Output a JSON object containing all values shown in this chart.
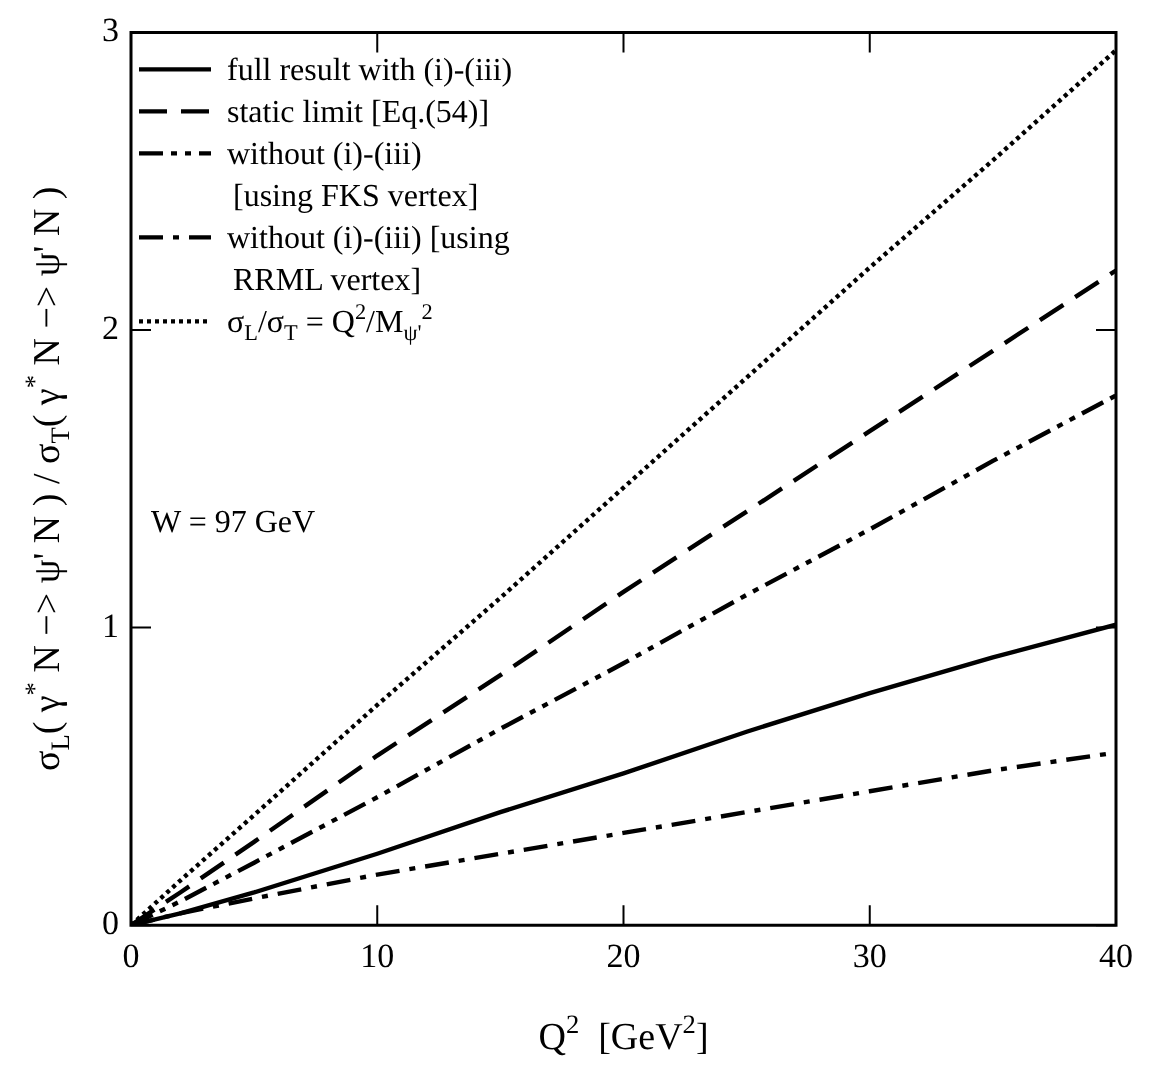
{
  "chart_data": {
    "type": "line",
    "xlabel": "Q$^{2}$  [GeV$^{2}$]",
    "ylabel": "σ$_{L}$( γ$^{*}$ N −> ψ' N ) / σ$_{T}$( γ$^{*}$ N −> ψ' N )",
    "x": [
      0,
      2,
      5,
      10,
      15,
      20,
      25,
      30,
      35,
      40
    ],
    "series": [
      {
        "name": "full result with (i)-(iii)",
        "color": "#000000",
        "line_style": "solid",
        "values": [
          0,
          0.04,
          0.11,
          0.24,
          0.38,
          0.51,
          0.65,
          0.78,
          0.9,
          1.01
        ]
      },
      {
        "name": "static limit [Eq.(54)]",
        "color": "#000000",
        "line_style": "dashed",
        "values": [
          0,
          0.11,
          0.28,
          0.57,
          0.84,
          1.12,
          1.39,
          1.66,
          1.93,
          2.2
        ]
      },
      {
        "name": "without (i)-(iii) [using FKS vertex]",
        "color": "#000000",
        "line_style": "dashdotdot",
        "values": [
          0,
          0.08,
          0.21,
          0.43,
          0.66,
          0.88,
          1.11,
          1.33,
          1.56,
          1.78
        ]
      },
      {
        "name": "without (i)-(iii) [using RRML vertex]",
        "color": "#000000",
        "line_style": "dashdot",
        "values": [
          0,
          0.04,
          0.09,
          0.17,
          0.24,
          0.31,
          0.38,
          0.45,
          0.52,
          0.58
        ]
      },
      {
        "name": "σ$_{L}$/σ$_{T}$ = Q$^{2}$/M$_{ψ'}$$^{2}$",
        "color": "#000000",
        "line_style": "dotted",
        "values": [
          0,
          0.15,
          0.37,
          0.74,
          1.1,
          1.47,
          1.84,
          2.21,
          2.57,
          2.94
        ]
      }
    ],
    "xlim": [
      0,
      40
    ],
    "xticks": [
      0,
      10,
      20,
      30,
      40
    ],
    "ylim": [
      0,
      3
    ],
    "yticks": [
      0,
      1,
      2,
      3
    ],
    "legend": "top left",
    "marker": "none",
    "grid": false,
    "annotations": [
      "W = 97 GeV"
    ]
  }
}
